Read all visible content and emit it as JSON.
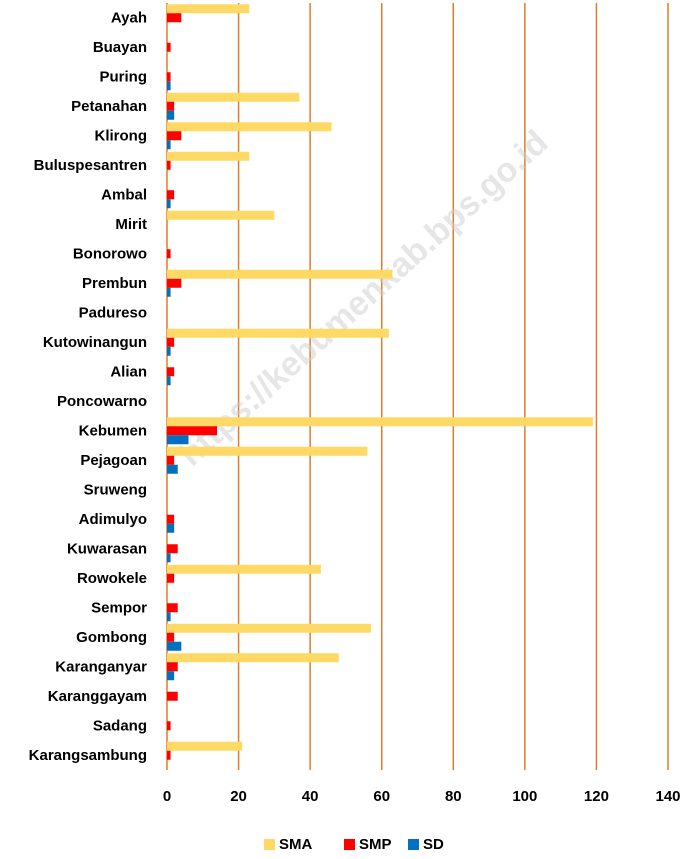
{
  "chart_data": {
    "type": "hbar",
    "categories": [
      "Ayah",
      "Buayan",
      "Puring",
      "Petanahan",
      "Klirong",
      "Buluspesantren",
      "Ambal",
      "Mirit",
      "Bonorowo",
      "Prembun",
      "Padureso",
      "Kutowinangun",
      "Alian",
      "Poncowarno",
      "Kebumen",
      "Pejagoan",
      "Sruweng",
      "Adimulyo",
      "Kuwarasan",
      "Rowokele",
      "Sempor",
      "Gombong",
      "Karanganyar",
      "Karanggayam",
      "Sadang",
      "Karangsambung"
    ],
    "series": [
      {
        "name": "SMA",
        "color": "#ffd966",
        "values": [
          23,
          0,
          0,
          37,
          46,
          23,
          0,
          30,
          0,
          63,
          0,
          62,
          0,
          0,
          119,
          56,
          0,
          0,
          0,
          43,
          0,
          57,
          48,
          0,
          0,
          21
        ]
      },
      {
        "name": "SMP",
        "color": "#ff0000",
        "values": [
          4,
          1,
          1,
          2,
          4,
          1,
          2,
          0,
          1,
          4,
          0,
          2,
          2,
          0,
          14,
          2,
          0,
          2,
          3,
          2,
          3,
          2,
          3,
          3,
          1,
          1
        ]
      },
      {
        "name": "SD",
        "color": "#0070c0",
        "values": [
          0,
          0,
          1,
          2,
          1,
          0,
          1,
          0,
          0,
          1,
          0,
          1,
          1,
          0,
          6,
          3,
          0,
          2,
          1,
          0,
          1,
          4,
          2,
          0,
          0,
          0
        ]
      }
    ],
    "xlim": [
      0,
      140
    ],
    "xticks": [
      0,
      20,
      40,
      60,
      80,
      100,
      120,
      140
    ],
    "grid": true,
    "grid_color": "#e07b2b",
    "legend": "bottom",
    "watermark": "https://kebumenkab.bps.go.id"
  }
}
